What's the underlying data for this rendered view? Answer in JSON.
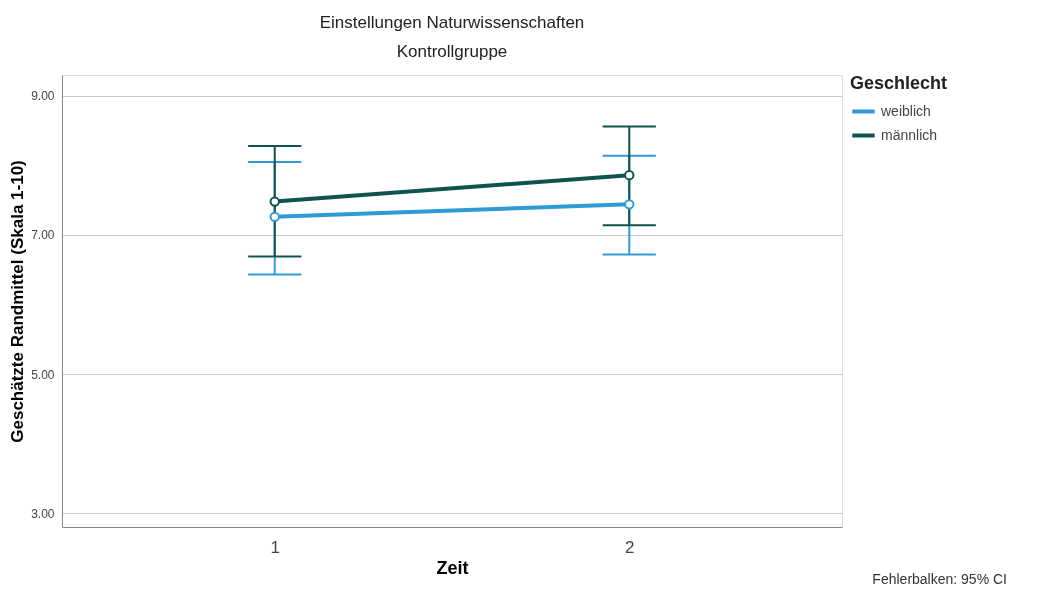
{
  "chart_data": {
    "type": "line",
    "title": "Einstellungen Naturwissenschaften",
    "subtitle": "Kontrollgruppe",
    "xlabel": "Zeit",
    "ylabel": "Geschätzte Randmittel (Skala 1-10)",
    "legend_title": "Geschlecht",
    "categories": [
      "1",
      "2"
    ],
    "series": [
      {
        "name": "weiblich",
        "color": "#2e9bd6",
        "values": [
          7.26,
          7.44
        ],
        "errors": [
          [
            6.43,
            8.05
          ],
          [
            6.72,
            8.14
          ]
        ]
      },
      {
        "name": "männlich",
        "color": "#0f5250",
        "values": [
          7.48,
          7.86
        ],
        "errors": [
          [
            6.69,
            8.28
          ],
          [
            7.14,
            8.56
          ]
        ]
      }
    ],
    "ylim": [
      2.8,
      9.3
    ],
    "yticks": [
      {
        "value": 3,
        "label": "3.00"
      },
      {
        "value": 5,
        "label": "5.00"
      },
      {
        "value": 7,
        "label": "7.00"
      },
      {
        "value": 9,
        "label": "9.00"
      }
    ],
    "grid": "y",
    "legend": "top right",
    "marker": "circle",
    "line_style": "solid",
    "annotations": [
      "Fehlerbalken: 95% CI"
    ]
  }
}
